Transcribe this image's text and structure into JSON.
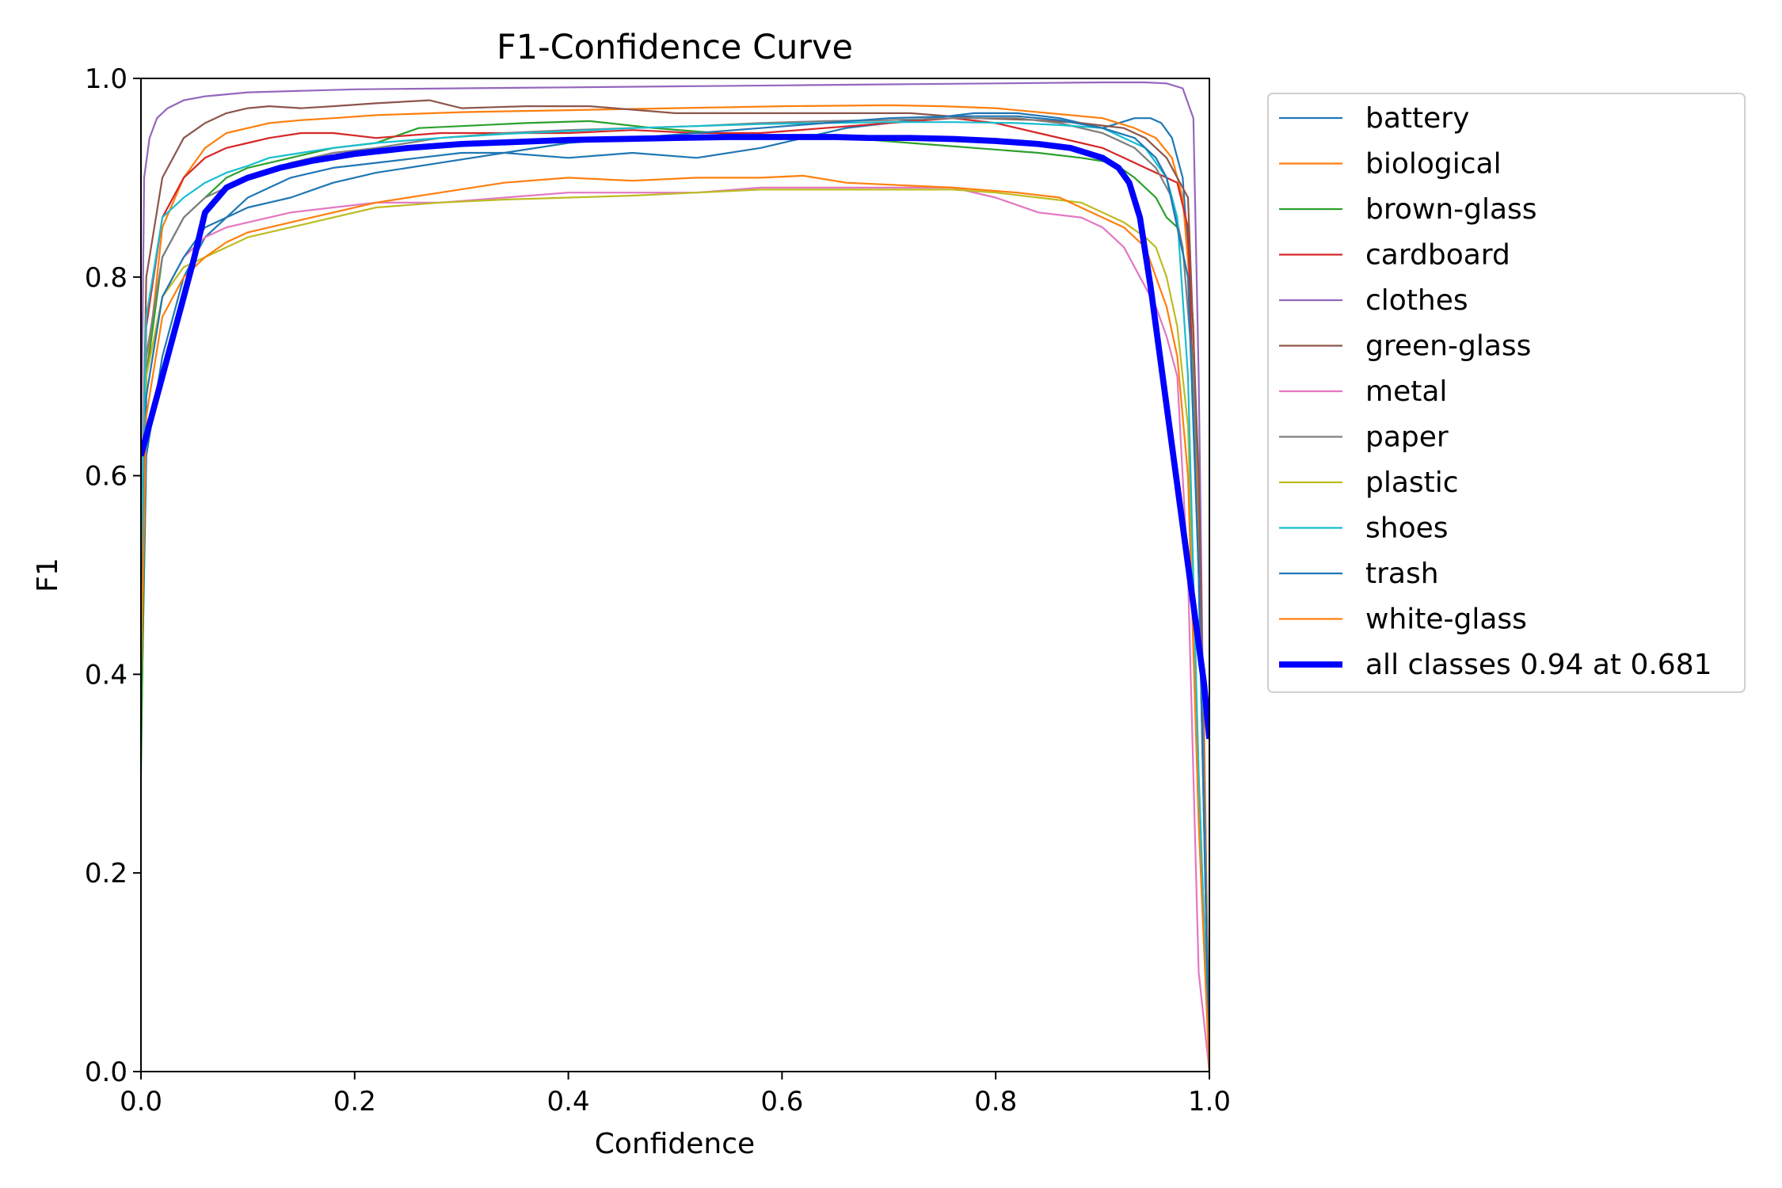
{
  "chart_data": {
    "type": "line",
    "title": "F1-Confidence Curve",
    "xlabel": "Confidence",
    "ylabel": "F1",
    "xlim": [
      0.0,
      1.0
    ],
    "ylim": [
      0.0,
      1.0
    ],
    "xticks": [
      "0.0",
      "0.2",
      "0.4",
      "0.6",
      "0.8",
      "1.0"
    ],
    "yticks": [
      "0.0",
      "0.2",
      "0.4",
      "0.6",
      "0.8",
      "1.0"
    ],
    "grid": false,
    "legend_position": "outside-right-top",
    "series": [
      {
        "name": "battery",
        "color": "#1f77b4",
        "width": 2,
        "x": [
          0.0,
          0.005,
          0.02,
          0.04,
          0.06,
          0.08,
          0.1,
          0.14,
          0.18,
          0.22,
          0.26,
          0.3,
          0.34,
          0.4,
          0.46,
          0.52,
          0.58,
          0.62,
          0.66,
          0.7,
          0.74,
          0.78,
          0.82,
          0.86,
          0.9,
          0.93,
          0.945,
          0.955,
          0.965,
          0.975,
          0.985,
          0.995,
          1.0
        ],
        "y": [
          0.33,
          0.62,
          0.72,
          0.8,
          0.84,
          0.86,
          0.88,
          0.9,
          0.91,
          0.915,
          0.92,
          0.925,
          0.925,
          0.92,
          0.925,
          0.92,
          0.93,
          0.94,
          0.95,
          0.955,
          0.96,
          0.965,
          0.965,
          0.96,
          0.95,
          0.96,
          0.96,
          0.955,
          0.94,
          0.9,
          0.75,
          0.3,
          0.0
        ]
      },
      {
        "name": "biological",
        "color": "#ff7f0e",
        "width": 2,
        "x": [
          0.0,
          0.005,
          0.02,
          0.04,
          0.06,
          0.08,
          0.1,
          0.12,
          0.15,
          0.18,
          0.22,
          0.3,
          0.4,
          0.5,
          0.6,
          0.7,
          0.75,
          0.8,
          0.85,
          0.9,
          0.93,
          0.95,
          0.965,
          0.975,
          0.985,
          0.995,
          1.0
        ],
        "y": [
          0.4,
          0.7,
          0.85,
          0.9,
          0.93,
          0.945,
          0.95,
          0.955,
          0.958,
          0.96,
          0.963,
          0.966,
          0.968,
          0.97,
          0.972,
          0.973,
          0.972,
          0.97,
          0.965,
          0.96,
          0.95,
          0.94,
          0.92,
          0.88,
          0.75,
          0.35,
          0.0
        ]
      },
      {
        "name": "brown-glass",
        "color": "#2ca02c",
        "width": 2,
        "x": [
          0.0,
          0.005,
          0.02,
          0.04,
          0.06,
          0.08,
          0.1,
          0.14,
          0.18,
          0.22,
          0.26,
          0.3,
          0.36,
          0.42,
          0.48,
          0.54,
          0.6,
          0.66,
          0.72,
          0.78,
          0.84,
          0.88,
          0.91,
          0.93,
          0.95,
          0.96,
          0.97,
          0.98,
          0.99,
          1.0
        ],
        "y": [
          0.3,
          0.7,
          0.82,
          0.86,
          0.88,
          0.9,
          0.91,
          0.92,
          0.93,
          0.935,
          0.95,
          0.952,
          0.955,
          0.957,
          0.95,
          0.945,
          0.94,
          0.94,
          0.935,
          0.93,
          0.925,
          0.92,
          0.915,
          0.9,
          0.88,
          0.86,
          0.85,
          0.8,
          0.6,
          0.0
        ]
      },
      {
        "name": "cardboard",
        "color": "#d62728",
        "width": 2,
        "x": [
          0.0,
          0.005,
          0.02,
          0.04,
          0.06,
          0.08,
          0.1,
          0.12,
          0.15,
          0.18,
          0.22,
          0.28,
          0.34,
          0.4,
          0.46,
          0.52,
          0.58,
          0.64,
          0.7,
          0.76,
          0.8,
          0.84,
          0.88,
          0.9,
          0.92,
          0.94,
          0.96,
          0.97,
          0.98,
          0.99,
          1.0
        ],
        "y": [
          0.45,
          0.75,
          0.86,
          0.9,
          0.92,
          0.93,
          0.935,
          0.94,
          0.945,
          0.945,
          0.94,
          0.945,
          0.945,
          0.945,
          0.948,
          0.945,
          0.945,
          0.95,
          0.955,
          0.96,
          0.955,
          0.945,
          0.935,
          0.93,
          0.92,
          0.91,
          0.9,
          0.895,
          0.85,
          0.5,
          0.0
        ]
      },
      {
        "name": "clothes",
        "color": "#9467bd",
        "width": 2,
        "x": [
          0.0,
          0.003,
          0.008,
          0.015,
          0.025,
          0.04,
          0.06,
          0.1,
          0.2,
          0.3,
          0.4,
          0.5,
          0.6,
          0.7,
          0.8,
          0.9,
          0.94,
          0.96,
          0.975,
          0.985,
          0.99,
          0.995,
          1.0
        ],
        "y": [
          0.6,
          0.9,
          0.94,
          0.96,
          0.97,
          0.978,
          0.982,
          0.986,
          0.989,
          0.99,
          0.991,
          0.992,
          0.993,
          0.994,
          0.995,
          0.996,
          0.996,
          0.995,
          0.99,
          0.96,
          0.7,
          0.3,
          0.0
        ]
      },
      {
        "name": "green-glass",
        "color": "#8c564b",
        "width": 2,
        "x": [
          0.0,
          0.005,
          0.02,
          0.04,
          0.06,
          0.08,
          0.1,
          0.12,
          0.15,
          0.18,
          0.22,
          0.27,
          0.3,
          0.36,
          0.42,
          0.5,
          0.58,
          0.66,
          0.72,
          0.78,
          0.84,
          0.88,
          0.92,
          0.94,
          0.96,
          0.97,
          0.98,
          0.99,
          1.0
        ],
        "y": [
          0.5,
          0.8,
          0.9,
          0.94,
          0.955,
          0.965,
          0.97,
          0.972,
          0.97,
          0.972,
          0.975,
          0.978,
          0.97,
          0.972,
          0.972,
          0.965,
          0.965,
          0.965,
          0.965,
          0.96,
          0.958,
          0.955,
          0.95,
          0.94,
          0.92,
          0.9,
          0.88,
          0.6,
          0.0
        ]
      },
      {
        "name": "metal",
        "color": "#e377c2",
        "width": 2,
        "x": [
          0.0,
          0.005,
          0.02,
          0.04,
          0.06,
          0.08,
          0.1,
          0.14,
          0.18,
          0.22,
          0.28,
          0.34,
          0.4,
          0.46,
          0.52,
          0.58,
          0.64,
          0.7,
          0.76,
          0.8,
          0.84,
          0.88,
          0.9,
          0.92,
          0.93,
          0.94,
          0.95,
          0.96,
          0.97,
          0.98,
          0.99,
          1.0
        ],
        "y": [
          0.45,
          0.7,
          0.78,
          0.82,
          0.84,
          0.85,
          0.855,
          0.865,
          0.87,
          0.875,
          0.875,
          0.88,
          0.885,
          0.885,
          0.885,
          0.89,
          0.89,
          0.89,
          0.89,
          0.88,
          0.865,
          0.86,
          0.85,
          0.83,
          0.81,
          0.79,
          0.77,
          0.74,
          0.7,
          0.5,
          0.1,
          0.0
        ]
      },
      {
        "name": "paper",
        "color": "#7f7f7f",
        "width": 2,
        "x": [
          0.0,
          0.005,
          0.02,
          0.04,
          0.06,
          0.08,
          0.1,
          0.14,
          0.18,
          0.22,
          0.28,
          0.34,
          0.4,
          0.46,
          0.52,
          0.58,
          0.64,
          0.7,
          0.76,
          0.82,
          0.86,
          0.9,
          0.93,
          0.95,
          0.965,
          0.975,
          0.985,
          0.995,
          1.0
        ],
        "y": [
          0.45,
          0.72,
          0.82,
          0.86,
          0.88,
          0.89,
          0.9,
          0.915,
          0.925,
          0.93,
          0.94,
          0.945,
          0.948,
          0.95,
          0.952,
          0.955,
          0.957,
          0.958,
          0.96,
          0.96,
          0.955,
          0.945,
          0.93,
          0.91,
          0.88,
          0.83,
          0.7,
          0.3,
          0.0
        ]
      },
      {
        "name": "plastic",
        "color": "#bcbd22",
        "width": 2,
        "x": [
          0.0,
          0.005,
          0.02,
          0.04,
          0.06,
          0.08,
          0.1,
          0.14,
          0.18,
          0.22,
          0.28,
          0.34,
          0.4,
          0.46,
          0.52,
          0.58,
          0.64,
          0.7,
          0.76,
          0.8,
          0.84,
          0.88,
          0.9,
          0.92,
          0.94,
          0.95,
          0.96,
          0.97,
          0.98,
          0.99,
          1.0
        ],
        "y": [
          0.45,
          0.7,
          0.78,
          0.81,
          0.82,
          0.83,
          0.84,
          0.85,
          0.86,
          0.87,
          0.875,
          0.878,
          0.88,
          0.882,
          0.885,
          0.888,
          0.888,
          0.888,
          0.888,
          0.885,
          0.88,
          0.875,
          0.865,
          0.855,
          0.84,
          0.83,
          0.8,
          0.75,
          0.65,
          0.3,
          0.0
        ]
      },
      {
        "name": "shoes",
        "color": "#17becf",
        "width": 2,
        "x": [
          0.0,
          0.005,
          0.02,
          0.04,
          0.06,
          0.08,
          0.1,
          0.12,
          0.15,
          0.18,
          0.22,
          0.28,
          0.34,
          0.4,
          0.46,
          0.52,
          0.58,
          0.64,
          0.7,
          0.76,
          0.82,
          0.86,
          0.9,
          0.92,
          0.94,
          0.96,
          0.97,
          0.98,
          0.99,
          1.0
        ],
        "y": [
          0.5,
          0.76,
          0.86,
          0.88,
          0.895,
          0.905,
          0.912,
          0.92,
          0.925,
          0.93,
          0.935,
          0.94,
          0.944,
          0.947,
          0.95,
          0.952,
          0.954,
          0.955,
          0.956,
          0.956,
          0.955,
          0.953,
          0.95,
          0.94,
          0.93,
          0.9,
          0.86,
          0.7,
          0.3,
          0.0
        ]
      },
      {
        "name": "trash",
        "color": "#1f77b4",
        "width": 2,
        "x": [
          0.0,
          0.005,
          0.02,
          0.04,
          0.06,
          0.08,
          0.1,
          0.14,
          0.18,
          0.22,
          0.28,
          0.34,
          0.4,
          0.46,
          0.52,
          0.58,
          0.64,
          0.7,
          0.76,
          0.82,
          0.86,
          0.9,
          0.93,
          0.95,
          0.96,
          0.97,
          0.98,
          0.99,
          1.0
        ],
        "y": [
          0.42,
          0.68,
          0.78,
          0.82,
          0.85,
          0.86,
          0.87,
          0.88,
          0.895,
          0.905,
          0.915,
          0.925,
          0.935,
          0.94,
          0.945,
          0.95,
          0.955,
          0.96,
          0.962,
          0.962,
          0.958,
          0.95,
          0.94,
          0.92,
          0.9,
          0.85,
          0.8,
          0.5,
          0.0
        ]
      },
      {
        "name": "white-glass",
        "color": "#ff7f0e",
        "width": 2,
        "x": [
          0.0,
          0.005,
          0.02,
          0.04,
          0.06,
          0.08,
          0.1,
          0.14,
          0.18,
          0.22,
          0.28,
          0.34,
          0.4,
          0.46,
          0.52,
          0.58,
          0.62,
          0.66,
          0.7,
          0.76,
          0.82,
          0.86,
          0.9,
          0.92,
          0.94,
          0.95,
          0.96,
          0.97,
          0.98,
          0.99,
          1.0
        ],
        "y": [
          0.4,
          0.66,
          0.76,
          0.8,
          0.82,
          0.835,
          0.845,
          0.855,
          0.865,
          0.875,
          0.885,
          0.895,
          0.9,
          0.897,
          0.9,
          0.9,
          0.902,
          0.895,
          0.893,
          0.89,
          0.885,
          0.88,
          0.86,
          0.85,
          0.83,
          0.8,
          0.77,
          0.72,
          0.6,
          0.25,
          0.0
        ]
      },
      {
        "name": "all classes 0.94 at 0.681",
        "color": "#0000ff",
        "width": 7,
        "x": [
          0.0,
          0.01,
          0.02,
          0.03,
          0.04,
          0.05,
          0.06,
          0.08,
          0.1,
          0.13,
          0.16,
          0.2,
          0.25,
          0.3,
          0.35,
          0.4,
          0.45,
          0.5,
          0.55,
          0.6,
          0.65,
          0.681,
          0.72,
          0.76,
          0.8,
          0.84,
          0.87,
          0.9,
          0.915,
          0.925,
          0.935,
          0.945,
          0.955,
          0.965,
          0.975,
          0.985,
          0.995,
          1.0
        ],
        "y": [
          0.62,
          0.66,
          0.7,
          0.74,
          0.78,
          0.82,
          0.865,
          0.89,
          0.9,
          0.91,
          0.917,
          0.924,
          0.93,
          0.934,
          0.936,
          0.938,
          0.939,
          0.94,
          0.941,
          0.941,
          0.941,
          0.94,
          0.94,
          0.939,
          0.937,
          0.934,
          0.93,
          0.92,
          0.91,
          0.895,
          0.86,
          0.79,
          0.71,
          0.63,
          0.55,
          0.47,
          0.39,
          0.335
        ]
      }
    ]
  }
}
